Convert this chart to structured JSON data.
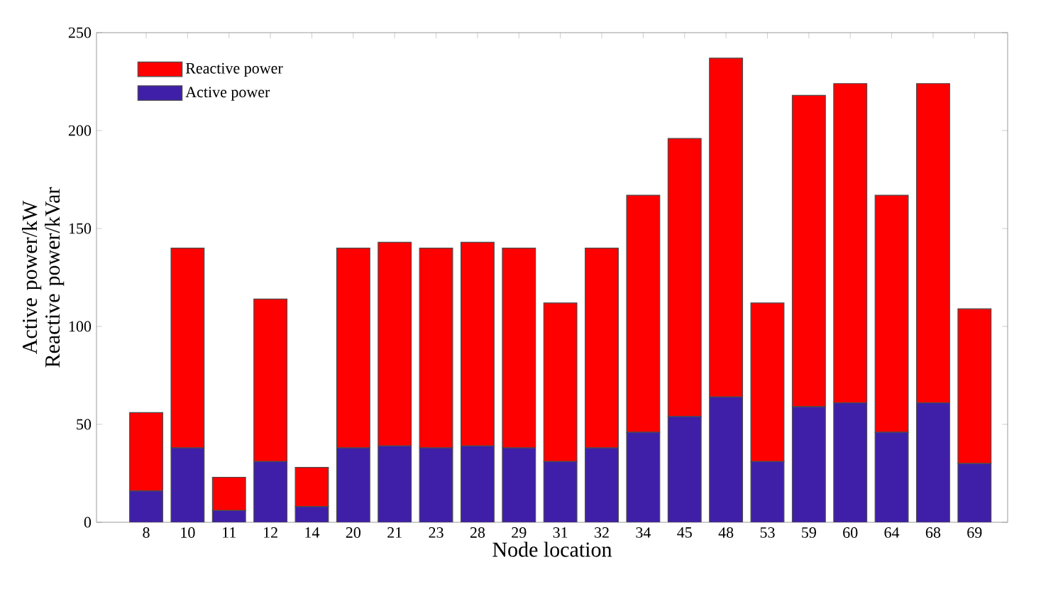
{
  "chart_data": {
    "type": "bar",
    "stacked": true,
    "xlabel": "Node location",
    "ylabel": "Active power/kW Reactive power/kVar",
    "categories": [
      "8",
      "10",
      "11",
      "12",
      "14",
      "20",
      "21",
      "23",
      "28",
      "29",
      "31",
      "32",
      "34",
      "45",
      "48",
      "53",
      "59",
      "60",
      "64",
      "68",
      "69"
    ],
    "series": [
      {
        "name": "Active power",
        "color": "#3f1fa8",
        "values": [
          16,
          38,
          6,
          31,
          8,
          38,
          39,
          38,
          39,
          38,
          31,
          38,
          46,
          54,
          64,
          31,
          59,
          61,
          46,
          61,
          30
        ]
      },
      {
        "name": "Reactive power",
        "color": "#ff0000",
        "values": [
          40,
          102,
          17,
          83,
          20,
          102,
          104,
          102,
          104,
          102,
          81,
          102,
          121,
          142,
          173,
          81,
          159,
          163,
          121,
          163,
          79
        ]
      }
    ],
    "ylim": [
      0,
      250
    ],
    "yticks": [
      0,
      50,
      100,
      150,
      200,
      250
    ],
    "legend": "top left",
    "grid": false
  }
}
